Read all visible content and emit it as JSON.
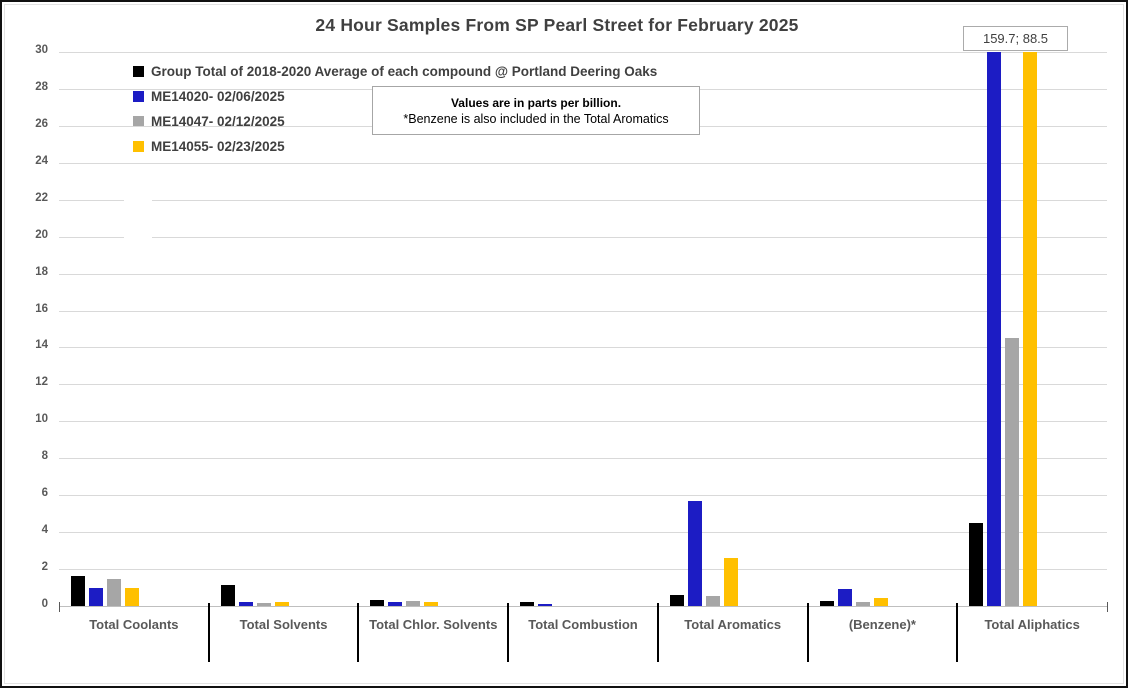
{
  "note": {
    "line1": "Values are in parts per billion.",
    "line2": "*Benzene is also included in the Total Aromatics"
  },
  "outlier_label": "159.7; 88.5",
  "chart_data": {
    "type": "bar",
    "title": "24 Hour Samples From SP Pearl Street for February 2025",
    "categories": [
      "Total Coolants",
      "Total Solvents",
      "Total Chlor. Solvents",
      "Total Combustion",
      "Total Aromatics",
      "(Benzene)*",
      "Total Aliphatics"
    ],
    "series": [
      {
        "name": "Group Total of 2018-2020 Average of each compound @ Portland Deering Oaks",
        "color": "#000000",
        "values": [
          1.6,
          1.15,
          0.35,
          0.2,
          0.6,
          0.25,
          4.5
        ]
      },
      {
        "name": "ME14020- 02/06/2025",
        "color": "#1c1cc4",
        "values": [
          1.0,
          0.2,
          0.2,
          0.1,
          5.7,
          0.9,
          159.7
        ]
      },
      {
        "name": "ME14047- 02/12/2025",
        "color": "#a6a6a6",
        "values": [
          1.45,
          0.15,
          0.25,
          0,
          0.55,
          0.2,
          14.5
        ]
      },
      {
        "name": "ME14055- 02/23/2025",
        "color": "#ffc000",
        "values": [
          1.0,
          0.2,
          0.2,
          0,
          2.6,
          0.45,
          88.5
        ]
      }
    ],
    "ylabel": "",
    "xlabel": "",
    "ylim": [
      0,
      30
    ],
    "yticks": [
      0,
      2,
      4,
      6,
      8,
      10,
      12,
      14,
      16,
      18,
      20,
      22,
      24,
      26,
      28,
      30
    ],
    "grid": true,
    "legend_position": "top-left",
    "annotation": "159.7; 88.5 label marks Total Aliphatics blue and yellow bars clipped at axis maximum"
  }
}
